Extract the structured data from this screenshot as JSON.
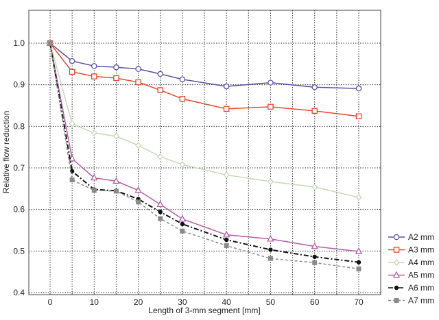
{
  "chart_data": {
    "type": "line",
    "title": "",
    "xlabel": "Length of 3-mm segment [mm]",
    "ylabel": "Relative flow reduction",
    "xlim": [
      -5,
      75
    ],
    "ylim": [
      0.4,
      1.08
    ],
    "xticks": [
      0,
      10,
      20,
      30,
      40,
      50,
      60,
      70
    ],
    "yticks": [
      0.4,
      0.5,
      0.6,
      0.7,
      0.8,
      0.9,
      1.0
    ],
    "ytick_labels": [
      "0.4",
      "0.5",
      "0.6",
      "0.7",
      "0.8",
      "0.9",
      "1.0"
    ],
    "grid": true,
    "legend_position": "bottom-right-outside",
    "x": [
      0,
      5,
      10,
      15,
      20,
      25,
      30,
      40,
      50,
      60,
      70
    ],
    "series": [
      {
        "name": "A2 mm",
        "color": "#5a4fa6",
        "marker": "circle",
        "dash": "solid",
        "values": [
          1.0,
          0.957,
          0.945,
          0.942,
          0.938,
          0.926,
          0.913,
          0.896,
          0.905,
          0.894,
          0.891
        ]
      },
      {
        "name": "A3 mm",
        "color": "#e8472a",
        "marker": "square",
        "dash": "solid",
        "values": [
          1.0,
          0.931,
          0.92,
          0.916,
          0.906,
          0.887,
          0.866,
          0.842,
          0.847,
          0.837,
          0.824
        ]
      },
      {
        "name": "A4 mm",
        "color": "#c3d9b5",
        "marker": "diamond",
        "dash": "solid",
        "values": [
          1.0,
          0.806,
          0.784,
          0.776,
          0.754,
          0.727,
          0.708,
          0.683,
          0.667,
          0.654,
          0.629
        ]
      },
      {
        "name": "A5 mm",
        "color": "#b65aa8",
        "marker": "triangle",
        "dash": "solid",
        "values": [
          1.0,
          0.722,
          0.676,
          0.668,
          0.646,
          0.612,
          0.577,
          0.539,
          0.529,
          0.511,
          0.499
        ]
      },
      {
        "name": "A6 mm",
        "color": "#111111",
        "marker": "dot",
        "dash": "dashdot",
        "values": [
          1.0,
          0.692,
          0.648,
          0.645,
          0.625,
          0.594,
          0.565,
          0.527,
          0.503,
          0.486,
          0.473
        ]
      },
      {
        "name": "A7 mm",
        "color": "#8a8a8a",
        "marker": "filled-square",
        "dash": "dashed",
        "values": [
          1.0,
          0.671,
          0.646,
          0.644,
          0.618,
          0.578,
          0.548,
          0.513,
          0.482,
          0.472,
          0.457
        ]
      }
    ]
  }
}
